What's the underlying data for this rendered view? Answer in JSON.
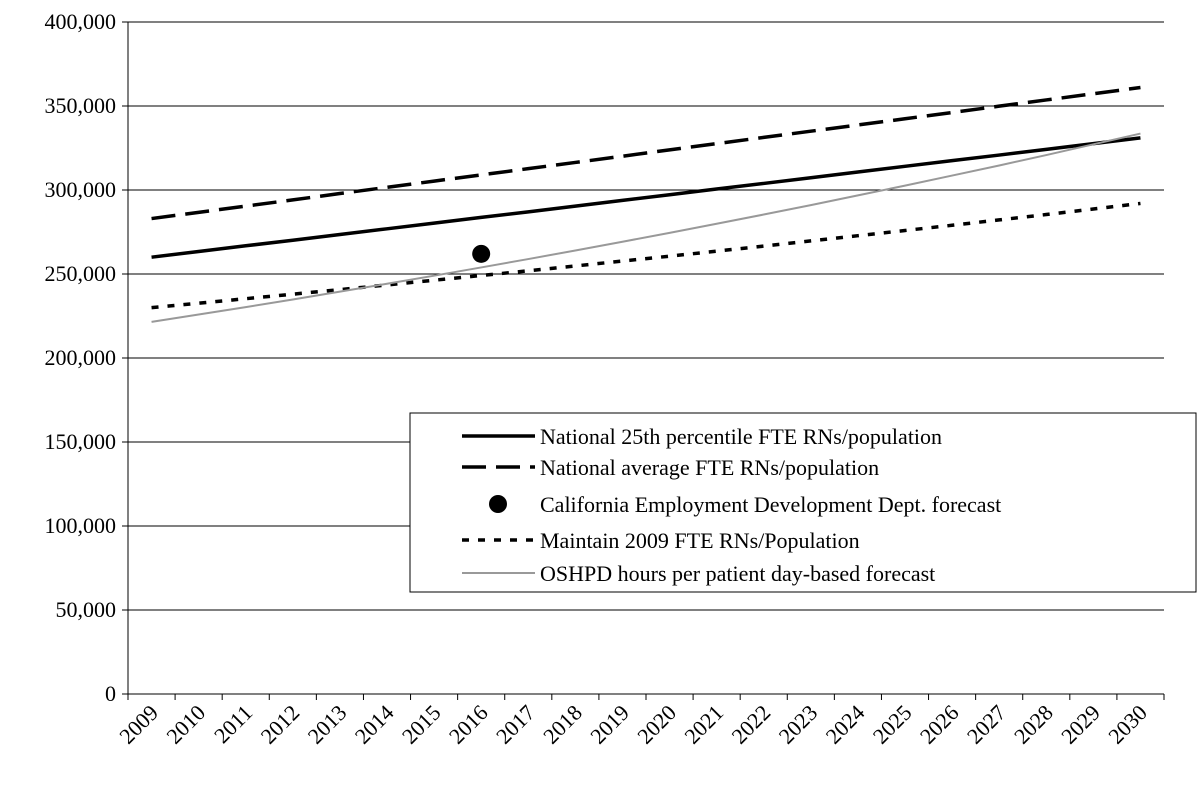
{
  "chart_data": {
    "type": "line",
    "categories": [
      "2009",
      "2010",
      "2011",
      "2012",
      "2013",
      "2014",
      "2015",
      "2016",
      "2017",
      "2018",
      "2019",
      "2020",
      "2021",
      "2022",
      "2023",
      "2024",
      "2025",
      "2026",
      "2027",
      "2028",
      "2029",
      "2030"
    ],
    "series": [
      {
        "name": "National 25th percentile FTE RNs/population",
        "color": "#000000",
        "style": "solid",
        "values": [
          260000,
          263400,
          266800,
          270100,
          273500,
          276900,
          280300,
          283700,
          287000,
          290400,
          293800,
          297200,
          300600,
          303900,
          307300,
          310700,
          314100,
          317500,
          320800,
          324200,
          327600,
          331000
        ]
      },
      {
        "name": "National average FTE RNs/population",
        "color": "#000000",
        "style": "dashed",
        "values": [
          283000,
          286700,
          290400,
          294100,
          297900,
          301600,
          305300,
          309000,
          312700,
          316400,
          320100,
          323900,
          327600,
          331300,
          335000,
          338700,
          342400,
          346100,
          349900,
          353600,
          357300,
          361000
        ]
      },
      {
        "name": "California Employment Development Dept. forecast",
        "color": "#000000",
        "style": "marker",
        "values": [
          null,
          null,
          null,
          null,
          null,
          null,
          null,
          262000,
          null,
          null,
          null,
          null,
          null,
          null,
          null,
          null,
          null,
          null,
          null,
          null,
          null,
          null
        ]
      },
      {
        "name": "Maintain 2009 FTE RNs/Population",
        "color": "#000000",
        "style": "dotted",
        "values": [
          230000,
          232600,
          235300,
          238000,
          240700,
          243500,
          246300,
          249100,
          251900,
          254800,
          257700,
          260600,
          263600,
          266600,
          269700,
          272800,
          275900,
          279000,
          282200,
          285400,
          288700,
          292000
        ]
      },
      {
        "name": "OSHPD hours per patient day-based forecast",
        "color": "#999999",
        "style": "thin",
        "values": [
          221500,
          225900,
          230300,
          234800,
          239500,
          244200,
          249000,
          253900,
          258900,
          264000,
          269200,
          274500,
          279900,
          285400,
          291000,
          296800,
          302600,
          308600,
          314600,
          320800,
          327200,
          333600
        ]
      }
    ],
    "ylim": [
      0,
      400000
    ],
    "yticks": [
      0,
      {
        "value": 50000,
        "label": "50,000"
      },
      {
        "value": 100000,
        "label": "100,000"
      },
      {
        "value": 150000,
        "label": "150,000"
      },
      {
        "value": 200000,
        "label": "200,000"
      },
      {
        "value": 250000,
        "label": "250,000"
      },
      {
        "value": 300000,
        "label": "300,000"
      },
      {
        "value": 350000,
        "label": "350,000"
      },
      {
        "value": 400000,
        "label": "400,000"
      }
    ],
    "grid": true
  }
}
